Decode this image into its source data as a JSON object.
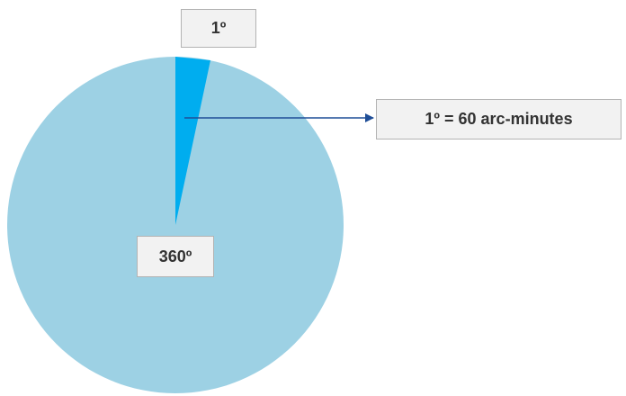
{
  "labels": {
    "slice": "1º",
    "whole": "360º",
    "definition": "1º = 60 arc-minutes"
  },
  "colors": {
    "circle_fill": "#9dd1e4",
    "slice_fill": "#00adef",
    "arrow": "#1f4e97",
    "box_fill": "#f2f2f2",
    "box_border": "#b3b3b3",
    "text": "#333333"
  }
}
